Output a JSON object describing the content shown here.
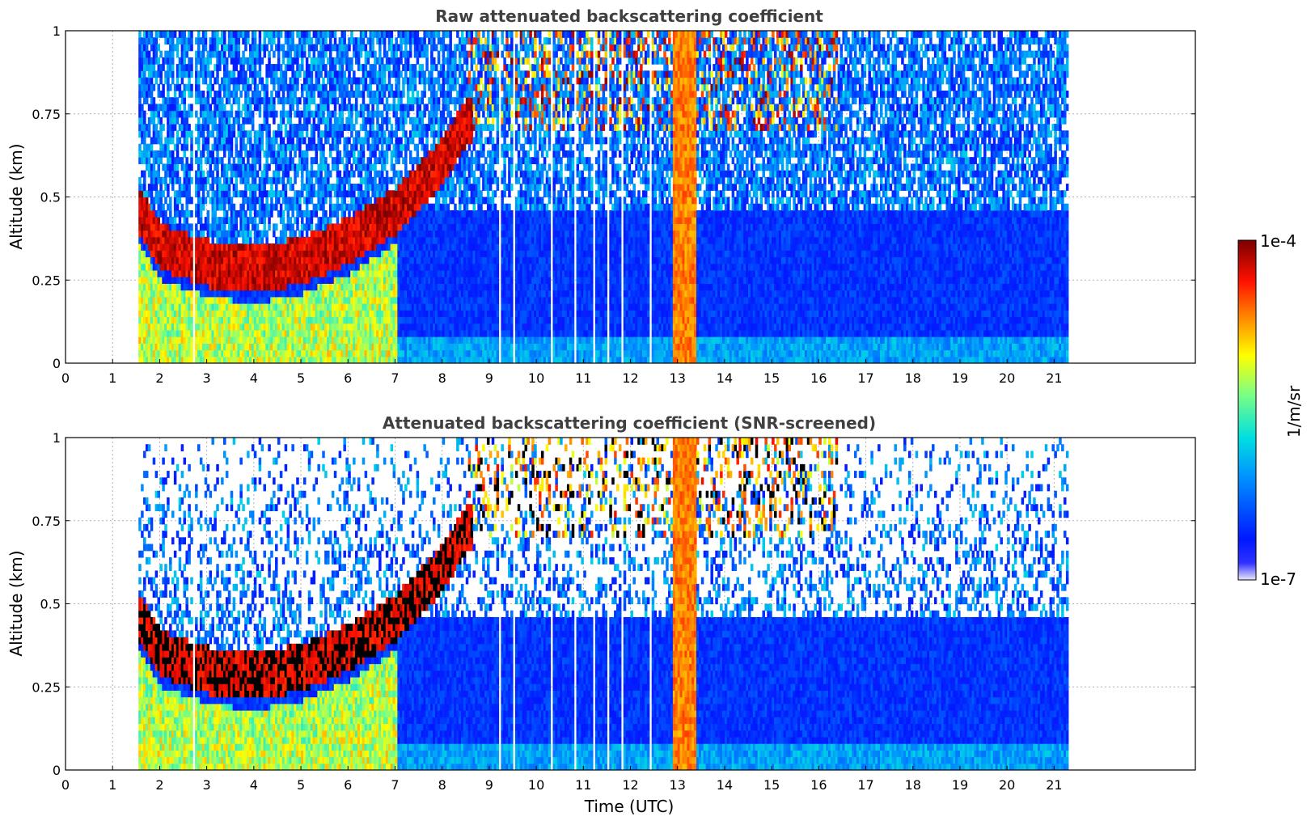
{
  "chart_data": [
    {
      "type": "heatmap",
      "title": "Raw attenuated backscattering coefficient",
      "xlabel": "",
      "ylabel": "Altitude (km)",
      "xlim": [
        0,
        24
      ],
      "ylim": [
        0,
        1
      ],
      "xticks": [
        "0",
        "1",
        "2",
        "3",
        "4",
        "5",
        "6",
        "7",
        "8",
        "9",
        "10",
        "11",
        "12",
        "13",
        "14",
        "15",
        "16",
        "17",
        "18",
        "19",
        "20",
        "21"
      ],
      "yticks": [
        "0",
        "0.25",
        "0.5",
        "0.75",
        "1"
      ],
      "grid": true,
      "data_time_range": [
        1.55,
        21.3
      ],
      "screened": false,
      "features": {
        "boundary_layer_top_km": [
          [
            1.55,
            0.45
          ],
          [
            2,
            0.34
          ],
          [
            3,
            0.29
          ],
          [
            4,
            0.27
          ],
          [
            5,
            0.3
          ],
          [
            6,
            0.36
          ],
          [
            7,
            0.45
          ],
          [
            8,
            0.6
          ],
          [
            8.5,
            0.72
          ]
        ],
        "low_cloud_strip_utc": [
          12.9,
          13.4
        ],
        "upper_cloud_utc": [
          8.5,
          16.4
        ],
        "precipitation_hatch_gaps_utc": [
          2.7,
          9.2,
          9.5,
          10.3,
          10.8,
          11.2,
          11.5,
          11.8,
          12.4
        ]
      }
    },
    {
      "type": "heatmap",
      "title": "Attenuated backscattering coefficient (SNR-screened)",
      "xlabel": "Time (UTC)",
      "ylabel": "Altitude (km)",
      "xlim": [
        0,
        24
      ],
      "ylim": [
        0,
        1
      ],
      "xticks": [
        "0",
        "1",
        "2",
        "3",
        "4",
        "5",
        "6",
        "7",
        "8",
        "9",
        "10",
        "11",
        "12",
        "13",
        "14",
        "15",
        "16",
        "17",
        "18",
        "19",
        "20",
        "21"
      ],
      "yticks": [
        "0",
        "0.25",
        "0.5",
        "0.75",
        "1"
      ],
      "grid": true,
      "data_time_range": [
        1.55,
        21.3
      ],
      "screened": true
    }
  ],
  "colorbar": {
    "label": "1/m/sr",
    "max_label": "1e-4",
    "min_label": "1e-7",
    "colormap": "jet"
  }
}
